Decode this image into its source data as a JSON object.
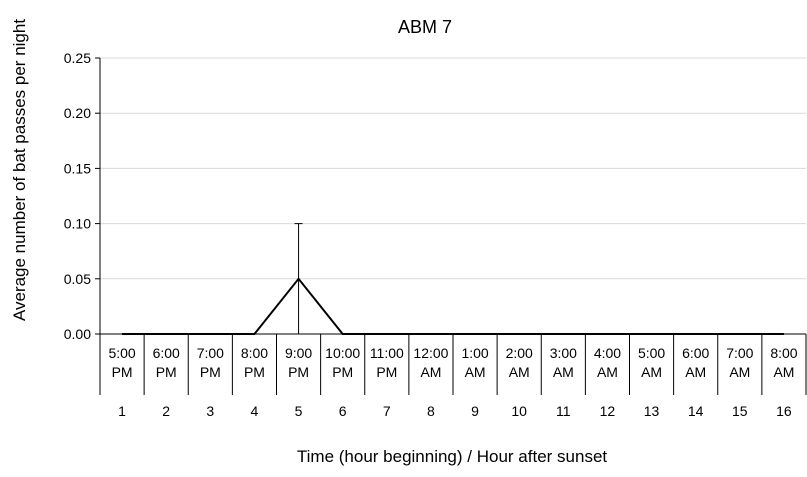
{
  "chart_data": {
    "type": "line",
    "title": "ABM 7",
    "xlabel": "Time (hour beginning) / Hour after sunset",
    "ylabel": "Average number of bat passes per night",
    "ylim": [
      0,
      0.25
    ],
    "yticks": [
      "0.00",
      "0.05",
      "0.10",
      "0.15",
      "0.20",
      "0.25"
    ],
    "grid": true,
    "legend": "none",
    "categories": [
      {
        "time": "5:00",
        "period": "PM",
        "hour": "1"
      },
      {
        "time": "6:00",
        "period": "PM",
        "hour": "2"
      },
      {
        "time": "7:00",
        "period": "PM",
        "hour": "3"
      },
      {
        "time": "8:00",
        "period": "PM",
        "hour": "4"
      },
      {
        "time": "9:00",
        "period": "PM",
        "hour": "5"
      },
      {
        "time": "10:00",
        "period": "PM",
        "hour": "6"
      },
      {
        "time": "11:00",
        "period": "PM",
        "hour": "7"
      },
      {
        "time": "12:00",
        "period": "AM",
        "hour": "8"
      },
      {
        "time": "1:00",
        "period": "AM",
        "hour": "9"
      },
      {
        "time": "2:00",
        "period": "AM",
        "hour": "10"
      },
      {
        "time": "3:00",
        "period": "AM",
        "hour": "11"
      },
      {
        "time": "4:00",
        "period": "AM",
        "hour": "12"
      },
      {
        "time": "5:00",
        "period": "AM",
        "hour": "13"
      },
      {
        "time": "6:00",
        "period": "AM",
        "hour": "14"
      },
      {
        "time": "7:00",
        "period": "AM",
        "hour": "15"
      },
      {
        "time": "8:00",
        "period": "AM",
        "hour": "16"
      }
    ],
    "series": [
      {
        "values": [
          0,
          0,
          0,
          0,
          0.05,
          0,
          0,
          0,
          0,
          0,
          0,
          0,
          0,
          0,
          0,
          0
        ],
        "error_upper": [
          0,
          0,
          0,
          0,
          0.05,
          0,
          0,
          0,
          0,
          0,
          0,
          0,
          0,
          0,
          0,
          0
        ],
        "error_lower": [
          0,
          0,
          0,
          0,
          0.05,
          0,
          0,
          0,
          0,
          0,
          0,
          0,
          0,
          0,
          0,
          0
        ],
        "color": "#000000"
      }
    ],
    "colors": {
      "grid": "#d9d9d9",
      "axis": "#000000",
      "line": "#000000"
    }
  }
}
